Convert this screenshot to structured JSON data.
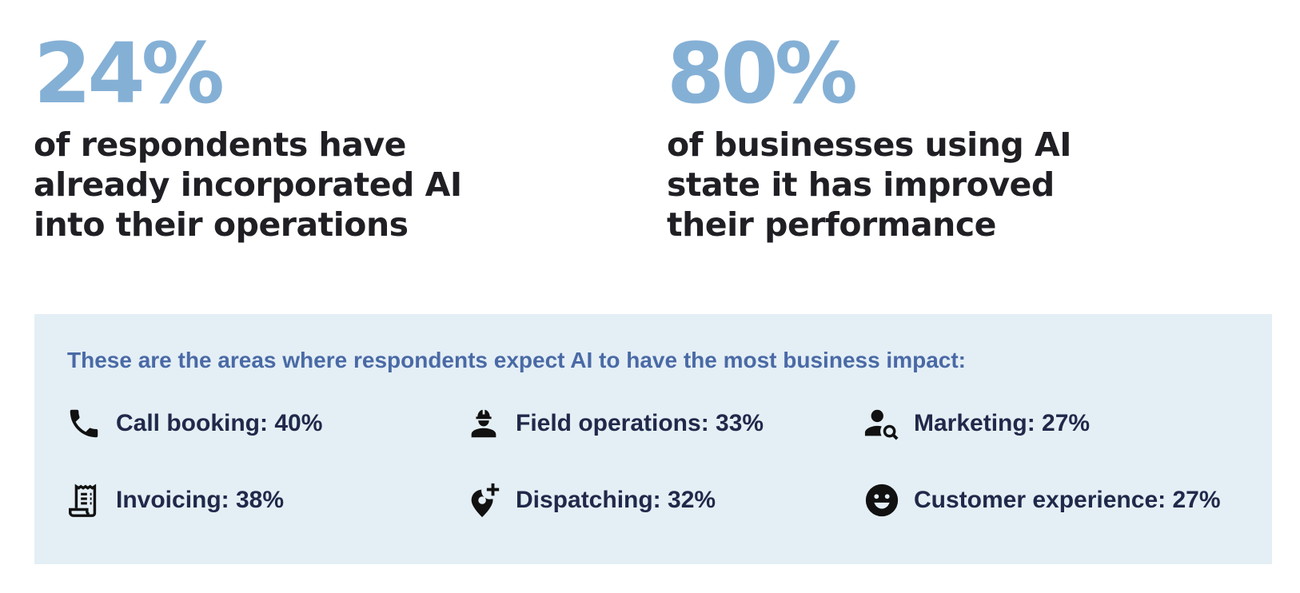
{
  "stats": [
    {
      "value": "24%",
      "description": "of respondents have already incorporated AI into their operations"
    },
    {
      "value": "80%",
      "description": "of businesses using AI state it has improved their performance"
    }
  ],
  "impact": {
    "heading": "These are the areas where respondents expect AI to have the most business impact:",
    "areas": [
      {
        "label": "Call booking: 40%",
        "icon": "phone-icon"
      },
      {
        "label": "Field operations: 33%",
        "icon": "worker-icon"
      },
      {
        "label": "Marketing: 27%",
        "icon": "person-search-icon"
      },
      {
        "label": "Invoicing: 38%",
        "icon": "receipt-icon"
      },
      {
        "label": "Dispatching: 32%",
        "icon": "add-location-icon"
      },
      {
        "label": "Customer experience: 27%",
        "icon": "smiley-icon"
      }
    ]
  },
  "colors": {
    "stat_number": "#85b0d5",
    "stat_text": "#1f1f24",
    "panel_bg": "#e4eff5",
    "heading": "#4a6aa6",
    "area_text": "#20294a"
  }
}
